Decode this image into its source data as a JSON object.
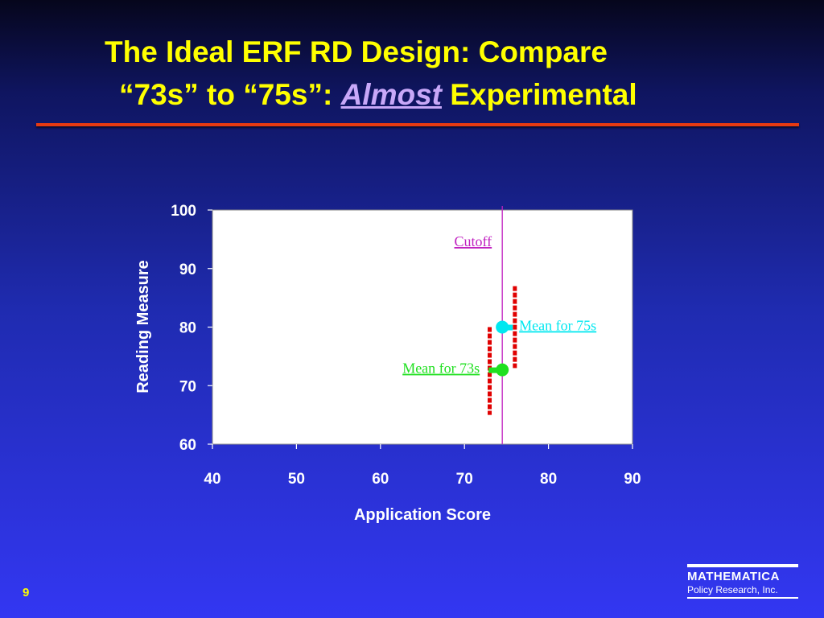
{
  "slide": {
    "title_line1": "The Ideal ERF RD Design: Compare",
    "title_line2_pre": "“73s” to “75s”: ",
    "title_emph": "Almost",
    "title_line2_post": " Experimental",
    "page_number": "9",
    "logo_name": "MATHEMATICA",
    "logo_sub": "Policy Research, Inc.",
    "colors": {
      "title": "#ffff00",
      "emph": "#c8a8f8",
      "rule": "#e63a12",
      "bg_top": "#06061c",
      "bg_bottom": "#3337f2"
    }
  },
  "chart_data": {
    "type": "scatter",
    "xlabel": "Application Score",
    "ylabel": "Reading Measure",
    "xlim": [
      40,
      90
    ],
    "ylim": [
      60,
      100
    ],
    "x_ticks": [
      40,
      50,
      60,
      70,
      80,
      90
    ],
    "y_ticks": [
      60,
      70,
      80,
      90,
      100
    ],
    "grid": false,
    "cutoff": {
      "x": 74.5,
      "label": "Cutoff",
      "color": "#c020c0"
    },
    "ranges": [
      {
        "x": 73,
        "y_low": 65,
        "y_high": 80,
        "color": "#e00000"
      },
      {
        "x": 76,
        "y_low": 73,
        "y_high": 87,
        "color": "#e00000"
      }
    ],
    "points": [
      {
        "name": "Mean for 75s",
        "x": 74.5,
        "y": 80,
        "color": "#00e8f0",
        "label_side": "right"
      },
      {
        "name": "Mean for 73s",
        "x": 74.5,
        "y": 72.7,
        "color": "#20e020",
        "label_side": "left"
      }
    ],
    "colors": {
      "plot_bg": "#ffffff",
      "tick_text": "#ffffff",
      "axis_title": "#ffffff"
    }
  }
}
